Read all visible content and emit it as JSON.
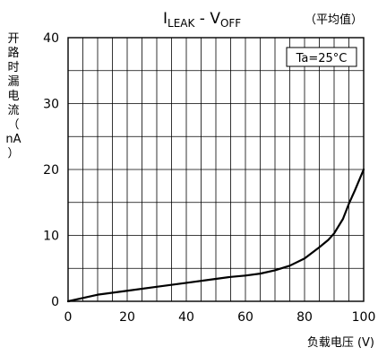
{
  "chart_data": {
    "type": "line",
    "title": {
      "main": "I",
      "main_sub": "LEAK",
      "separator": " - V",
      "second_sub": "OFF"
    },
    "subtitle": "（平均值）",
    "annotation": "Ta=25°C",
    "xlabel": "负载电压 (V)",
    "ylabel_chars": [
      "开",
      "路",
      "时",
      "漏",
      "电",
      "流",
      "（",
      "nA",
      "）"
    ],
    "xlim": [
      0,
      100
    ],
    "ylim": [
      0,
      40
    ],
    "x_ticks": [
      "0",
      "20",
      "40",
      "60",
      "80",
      "100"
    ],
    "y_ticks": [
      "0",
      "10",
      "20",
      "30",
      "40"
    ],
    "grid": true,
    "series": [
      {
        "x": [
          0,
          5,
          10,
          20,
          30,
          40,
          50,
          55,
          60,
          65,
          70,
          75,
          80,
          85,
          88,
          90,
          93,
          95,
          97,
          100
        ],
        "values": [
          0,
          0.5,
          1.0,
          1.6,
          2.2,
          2.8,
          3.4,
          3.7,
          3.9,
          4.2,
          4.7,
          5.4,
          6.5,
          8.2,
          9.3,
          10.3,
          12.5,
          14.8,
          16.8,
          20.0
        ]
      }
    ]
  }
}
